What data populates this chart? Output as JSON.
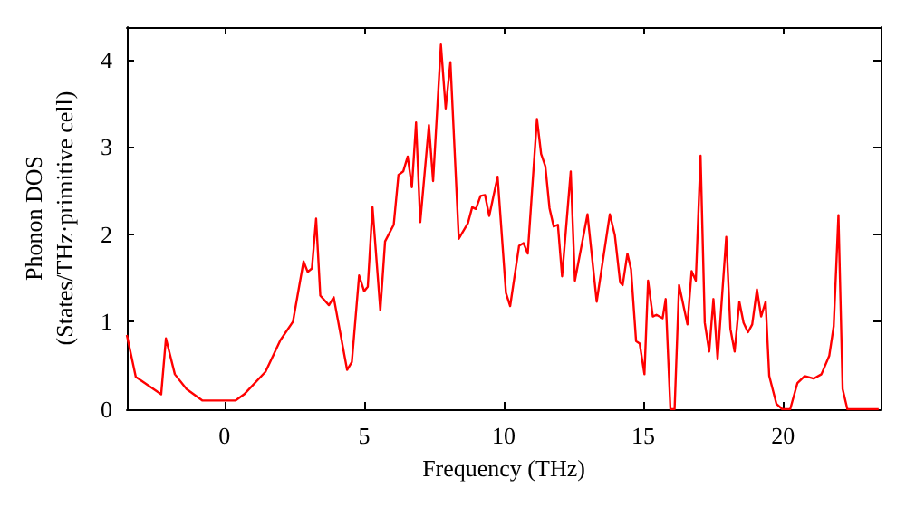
{
  "chart_data": {
    "type": "line",
    "xlabel": "Frequency (THz)",
    "ylabel": "Phonon DOS\n(States/THz·primitive cell)",
    "xlim": [
      -3.5,
      23.5
    ],
    "xticks": [
      0,
      5,
      10,
      15,
      20
    ],
    "ylim": [
      0,
      4.37
    ],
    "yticks": [
      0,
      1,
      2,
      3,
      4
    ],
    "grid": false,
    "marker": "none",
    "line_style": "solid",
    "series": [
      {
        "color": "#ff0000",
        "x": [
          -3.5,
          -3.18,
          -2.27,
          -2.1,
          -1.78,
          -1.36,
          -0.8,
          0.4,
          0.7,
          1.47,
          2.0,
          2.45,
          2.83,
          2.98,
          3.13,
          3.28,
          3.43,
          3.74,
          3.91,
          4.39,
          4.56,
          4.82,
          5.0,
          5.13,
          5.3,
          5.58,
          5.75,
          6.06,
          6.23,
          6.4,
          6.56,
          6.71,
          6.86,
          7.01,
          7.32,
          7.47,
          7.75,
          7.92,
          8.09,
          8.39,
          8.72,
          8.87,
          9.0,
          9.17,
          9.33,
          9.48,
          9.78,
          10.08,
          10.23,
          10.55,
          10.71,
          10.86,
          11.19,
          11.34,
          11.49,
          11.64,
          11.79,
          11.94,
          12.09,
          12.4,
          12.55,
          13.0,
          13.33,
          13.8,
          13.98,
          14.17,
          14.26,
          14.43,
          14.56,
          14.74,
          14.87,
          15.04,
          15.17,
          15.34,
          15.47,
          15.69,
          15.8,
          15.97,
          16.12,
          16.28,
          16.58,
          16.73,
          16.88,
          17.05,
          17.2,
          17.36,
          17.51,
          17.66,
          17.97,
          18.12,
          18.27,
          18.44,
          18.59,
          18.75,
          18.9,
          19.07,
          19.22,
          19.38,
          19.51,
          19.77,
          19.98,
          20.26,
          20.52,
          20.78,
          21.1,
          21.38,
          21.66,
          21.82,
          21.99,
          22.14,
          22.31,
          23.43
        ],
        "values": [
          0.85,
          0.37,
          0.17,
          0.81,
          0.4,
          0.23,
          0.1,
          0.1,
          0.17,
          0.43,
          0.79,
          1.0,
          1.69,
          1.57,
          1.61,
          2.18,
          1.3,
          1.19,
          1.28,
          0.45,
          0.54,
          1.53,
          1.35,
          1.4,
          2.31,
          1.13,
          1.92,
          2.11,
          2.68,
          2.72,
          2.89,
          2.54,
          3.28,
          2.14,
          3.25,
          2.61,
          4.17,
          3.44,
          3.97,
          1.95,
          2.13,
          2.31,
          2.29,
          2.44,
          2.45,
          2.21,
          2.66,
          1.33,
          1.18,
          1.87,
          1.9,
          1.78,
          3.32,
          2.92,
          2.78,
          2.3,
          2.09,
          2.11,
          1.52,
          2.72,
          1.47,
          2.23,
          1.23,
          2.23,
          1.99,
          1.45,
          1.42,
          1.78,
          1.6,
          0.78,
          0.75,
          0.4,
          1.47,
          1.06,
          1.08,
          1.04,
          1.26,
          0,
          0,
          1.42,
          0.97,
          1.58,
          1.47,
          2.9,
          0.99,
          0.66,
          1.26,
          0.57,
          1.97,
          0.92,
          0.66,
          1.23,
          0.99,
          0.88,
          0.97,
          1.37,
          1.06,
          1.23,
          0.38,
          0.06,
          0,
          0,
          0.3,
          0.38,
          0.35,
          0.4,
          0.61,
          0.95,
          2.22,
          0.23,
          0,
          0
        ]
      }
    ]
  }
}
